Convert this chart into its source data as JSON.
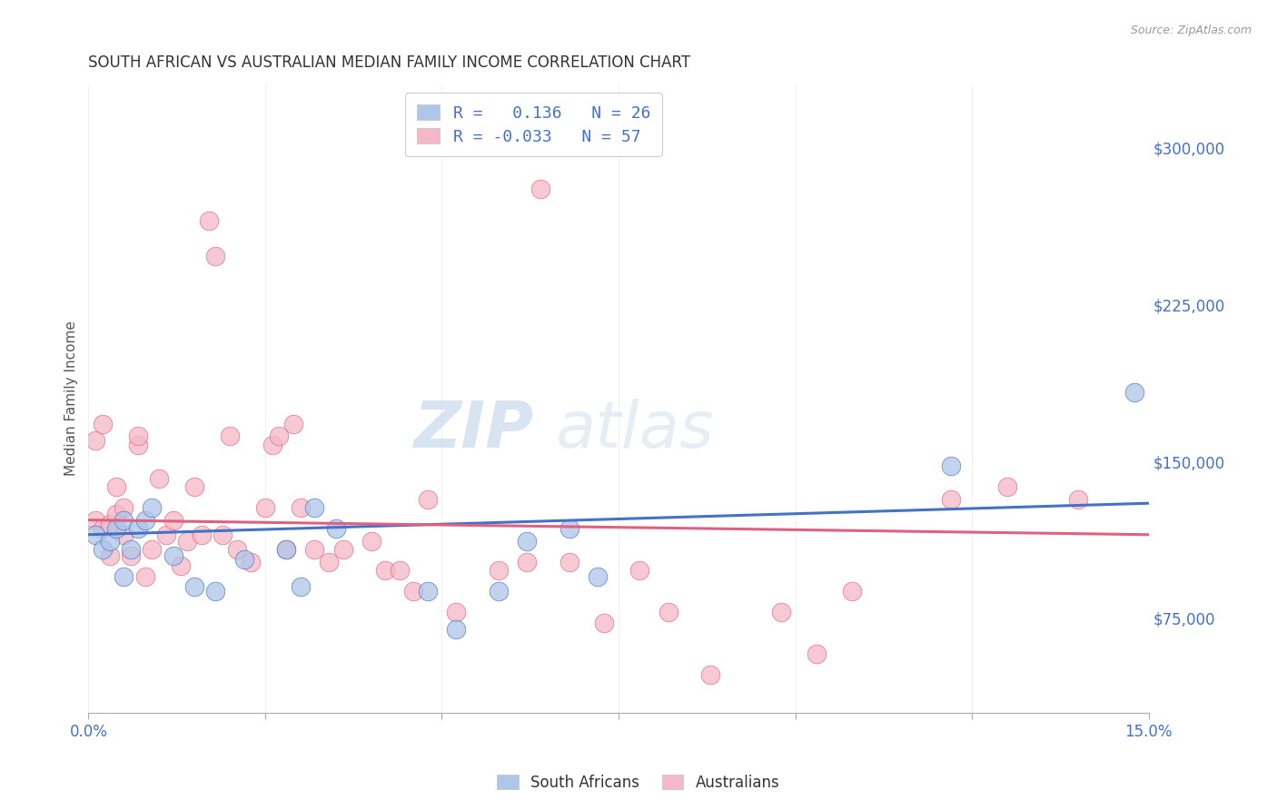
{
  "title": "SOUTH AFRICAN VS AUSTRALIAN MEDIAN FAMILY INCOME CORRELATION CHART",
  "source": "Source: ZipAtlas.com",
  "ylabel": "Median Family Income",
  "yticks": [
    75000,
    150000,
    225000,
    300000
  ],
  "ytick_labels": [
    "$75,000",
    "$150,000",
    "$225,000",
    "$300,000"
  ],
  "xlim": [
    0.0,
    0.15
  ],
  "ylim": [
    30000,
    330000
  ],
  "south_african_color": "#aec6e8",
  "australian_color": "#f5b8c8",
  "sa_line_color": "#4472c4",
  "au_line_color": "#e06080",
  "sa_R": 0.136,
  "sa_N": 26,
  "au_R": -0.033,
  "au_N": 57,
  "watermark": "ZIPatlas",
  "south_africans_x": [
    0.001,
    0.002,
    0.003,
    0.004,
    0.005,
    0.005,
    0.006,
    0.007,
    0.008,
    0.009,
    0.012,
    0.015,
    0.018,
    0.022,
    0.028,
    0.03,
    0.032,
    0.035,
    0.048,
    0.052,
    0.058,
    0.062,
    0.068,
    0.072,
    0.122,
    0.148
  ],
  "south_africans_y": [
    115000,
    108000,
    112000,
    118000,
    122000,
    95000,
    108000,
    118000,
    122000,
    128000,
    105000,
    90000,
    88000,
    103000,
    108000,
    90000,
    128000,
    118000,
    88000,
    70000,
    88000,
    112000,
    118000,
    95000,
    148000,
    183000
  ],
  "australians_x": [
    0.001,
    0.001,
    0.002,
    0.002,
    0.003,
    0.003,
    0.004,
    0.004,
    0.005,
    0.005,
    0.006,
    0.007,
    0.007,
    0.008,
    0.009,
    0.01,
    0.011,
    0.012,
    0.013,
    0.014,
    0.015,
    0.016,
    0.017,
    0.018,
    0.019,
    0.02,
    0.021,
    0.023,
    0.025,
    0.026,
    0.027,
    0.028,
    0.029,
    0.03,
    0.032,
    0.034,
    0.036,
    0.04,
    0.042,
    0.044,
    0.046,
    0.048,
    0.052,
    0.058,
    0.062,
    0.064,
    0.068,
    0.073,
    0.078,
    0.082,
    0.088,
    0.098,
    0.103,
    0.108,
    0.122,
    0.13,
    0.14
  ],
  "australians_y": [
    122000,
    160000,
    168000,
    118000,
    120000,
    105000,
    125000,
    138000,
    115000,
    128000,
    105000,
    158000,
    162000,
    95000,
    108000,
    142000,
    115000,
    122000,
    100000,
    112000,
    138000,
    115000,
    265000,
    248000,
    115000,
    162000,
    108000,
    102000,
    128000,
    158000,
    162000,
    108000,
    168000,
    128000,
    108000,
    102000,
    108000,
    112000,
    98000,
    98000,
    88000,
    132000,
    78000,
    98000,
    102000,
    280000,
    102000,
    73000,
    98000,
    78000,
    48000,
    78000,
    58000,
    88000,
    132000,
    138000,
    132000
  ]
}
